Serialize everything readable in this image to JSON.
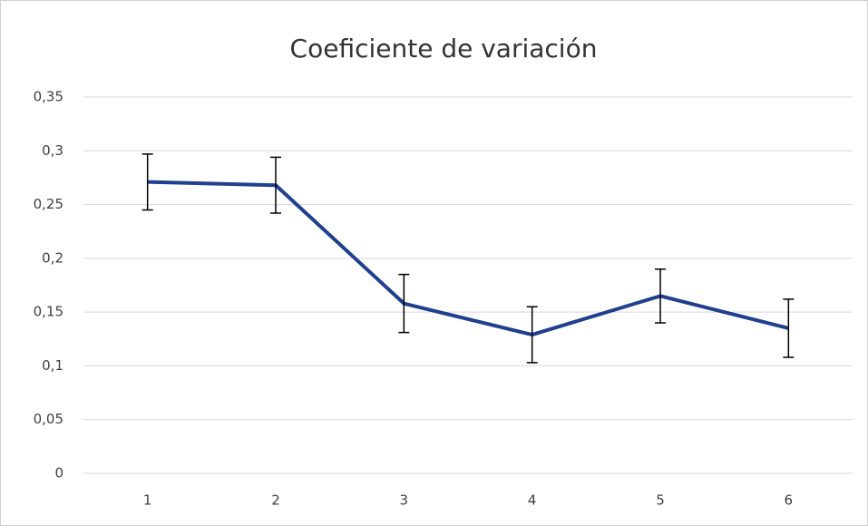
{
  "chart_data": {
    "type": "line",
    "title": "Coeficiente de variación",
    "categories": [
      "1",
      "2",
      "3",
      "4",
      "5",
      "6"
    ],
    "values": [
      0.271,
      0.268,
      0.158,
      0.129,
      0.165,
      0.135
    ],
    "errors": [
      0.026,
      0.026,
      0.027,
      0.026,
      0.025,
      0.027
    ],
    "color": "#1f3f8f",
    "error_color": "#000000",
    "ylim": [
      0,
      0.35
    ],
    "yticks": [
      0,
      {
        "value": 0.05,
        "label": "0,05"
      },
      {
        "value": 0.1,
        "label": "0,1"
      },
      {
        "value": 0.15,
        "label": "0,15"
      },
      {
        "value": 0.2,
        "label": "0,2"
      },
      {
        "value": 0.25,
        "label": "0,25"
      },
      {
        "value": 0.3,
        "label": "0,3"
      },
      {
        "value": 0.35,
        "label": "0,35"
      }
    ],
    "grid": true
  }
}
